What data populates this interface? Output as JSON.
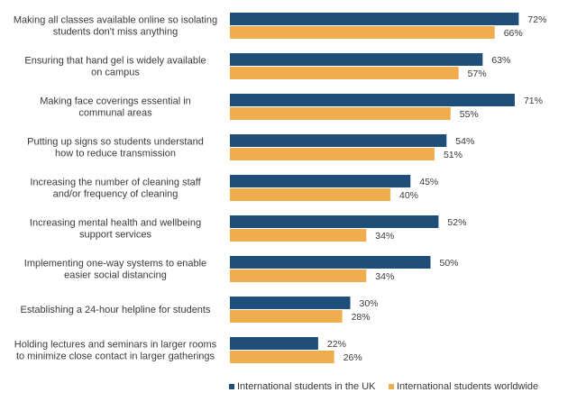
{
  "chart_data": {
    "type": "bar",
    "orientation": "horizontal",
    "title": "",
    "xlabel": "",
    "ylabel": "",
    "xlim": [
      0,
      80
    ],
    "grid": false,
    "legend_position": "bottom-right",
    "categories": [
      [
        "Making all classes available online so isolating",
        "students don't  miss anything"
      ],
      [
        "Ensuring that hand gel is widely available",
        "on campus"
      ],
      [
        "Making face coverings essential in",
        "communal areas"
      ],
      [
        "Putting up signs so students understand",
        "how to reduce transmission"
      ],
      [
        "Increasing the number of cleaning staff",
        "and/or frequency of cleaning"
      ],
      [
        "Increasing mental health and wellbeing",
        "support services"
      ],
      [
        "Implementing one-way systems to enable",
        "easier social distancing"
      ],
      [
        "Establishing a 24-hour helpline for students"
      ],
      [
        "Holding lectures and seminars in larger rooms",
        "to minimize close contact in larger gatherings"
      ]
    ],
    "series": [
      {
        "name": "International students in the UK",
        "color": "#1f4e79",
        "values": [
          72,
          63,
          71,
          54,
          45,
          52,
          50,
          30,
          22
        ],
        "labels": [
          "72%",
          "63%",
          "71%",
          "54%",
          "45%",
          "52%",
          "50%",
          "30%",
          "22%"
        ]
      },
      {
        "name": "International students worldwide",
        "color": "#f0ad4e",
        "values": [
          66,
          57,
          55,
          51,
          40,
          34,
          34,
          28,
          26
        ],
        "labels": [
          "66%",
          "57%",
          "55%",
          "51%",
          "40%",
          "34%",
          "34%",
          "28%",
          "26%"
        ]
      }
    ]
  }
}
